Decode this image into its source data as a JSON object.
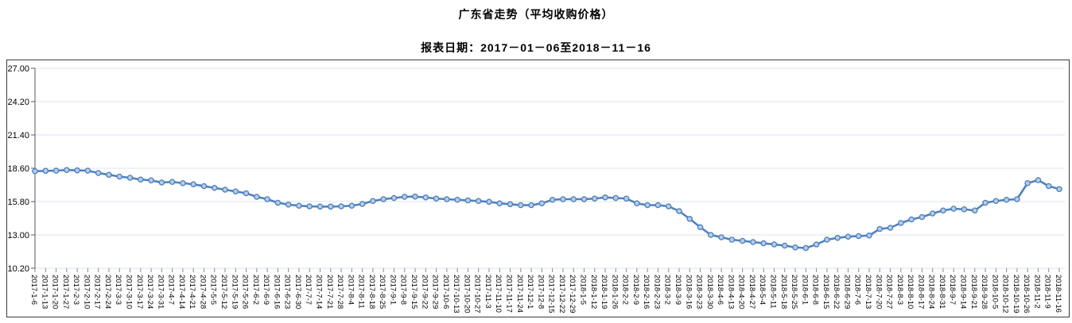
{
  "header": {
    "title": "广东省走势（平均收购价格）",
    "subtitle": "报表日期：2017－01－06至2018－11－16"
  },
  "chart_data": {
    "type": "line",
    "title": "广东省走势（平均收购价格）",
    "subtitle": "报表日期：2017－01－06至2018－11－16",
    "xlabel": "",
    "ylabel": "",
    "ylim": [
      10.2,
      27.0
    ],
    "yticks": [
      27.0,
      24.2,
      21.4,
      18.6,
      15.8,
      13.0,
      10.2
    ],
    "ytick_labels": [
      "27.00",
      "24.20",
      "21.40",
      "18.60",
      "15.80",
      "13.00",
      "10.20"
    ],
    "grid": true,
    "legend_position": "none",
    "line_color": "#4f81bd",
    "marker_fill": "#b7cde8",
    "grid_color": "#dce6f1",
    "axis_color": "#595959",
    "tick_color": "#8a8a8a",
    "x": [
      "2017-1-6",
      "2017-1-13",
      "2017-1-20",
      "2017-1-27",
      "2017-2-3",
      "2017-2-10",
      "2017-2-17",
      "2017-2-24",
      "2017-3-3",
      "2017-3-10",
      "2017-3-17",
      "2017-3-24",
      "2017-3-31",
      "2017-4-7",
      "2017-4-14",
      "2017-4-21",
      "2017-4-28",
      "2017-5-5",
      "2017-5-12",
      "2017-5-19",
      "2017-5-26",
      "2017-6-2",
      "2017-6-9",
      "2017-6-16",
      "2017-6-23",
      "2017-6-30",
      "2017-7-7",
      "2017-7-14",
      "2017-7-21",
      "2017-7-28",
      "2017-8-4",
      "2017-8-11",
      "2017-8-18",
      "2017-8-25",
      "2017-9-1",
      "2017-9-8",
      "2017-9-15",
      "2017-9-22",
      "2017-9-29",
      "2017-10-6",
      "2017-10-13",
      "2017-10-20",
      "2017-10-27",
      "2017-11-3",
      "2017-11-10",
      "2017-11-17",
      "2017-11-24",
      "2017-12-1",
      "2017-12-8",
      "2017-12-15",
      "2017-12-22",
      "2017-12-29",
      "2018-1-5",
      "2018-1-12",
      "2018-1-19",
      "2018-1-26",
      "2018-2-2",
      "2018-2-9",
      "2018-2-16",
      "2018-2-23",
      "2018-3-2",
      "2018-3-9",
      "2018-3-16",
      "2018-3-23",
      "2018-3-30",
      "2018-4-6",
      "2018-4-13",
      "2018-4-20",
      "2018-4-27",
      "2018-5-4",
      "2018-5-11",
      "2018-5-18",
      "2018-5-25",
      "2018-6-1",
      "2018-6-8",
      "2018-6-15",
      "2018-6-22",
      "2018-6-29",
      "2018-7-6",
      "2018-7-13",
      "2018-7-20",
      "2018-7-27",
      "2018-8-3",
      "2018-8-10",
      "2018-8-17",
      "2018-8-24",
      "2018-8-31",
      "2018-9-7",
      "2018-9-14",
      "2018-9-21",
      "2018-9-28",
      "2018-10-5",
      "2018-10-12",
      "2018-10-19",
      "2018-10-26",
      "2018-11-2",
      "2018-11-9",
      "2018-11-16"
    ],
    "values": [
      18.35,
      18.38,
      18.4,
      18.45,
      18.42,
      18.4,
      18.2,
      18.05,
      17.9,
      17.8,
      17.65,
      17.58,
      17.4,
      17.45,
      17.35,
      17.25,
      17.1,
      16.95,
      16.8,
      16.65,
      16.5,
      16.2,
      16.0,
      15.7,
      15.55,
      15.45,
      15.4,
      15.38,
      15.38,
      15.4,
      15.45,
      15.6,
      15.85,
      16.0,
      16.1,
      16.2,
      16.22,
      16.15,
      16.05,
      16.0,
      15.95,
      15.9,
      15.85,
      15.78,
      15.65,
      15.58,
      15.5,
      15.5,
      15.65,
      15.95,
      16.0,
      16.0,
      16.0,
      16.05,
      16.15,
      16.1,
      16.05,
      15.65,
      15.5,
      15.5,
      15.4,
      15.0,
      14.35,
      13.65,
      13.0,
      12.8,
      12.6,
      12.5,
      12.4,
      12.3,
      12.2,
      12.1,
      11.95,
      11.9,
      12.2,
      12.6,
      12.75,
      12.85,
      12.9,
      12.95,
      13.5,
      13.6,
      14.0,
      14.3,
      14.5,
      14.8,
      15.05,
      15.2,
      15.15,
      15.05,
      15.7,
      15.85,
      15.95,
      16.0,
      17.35,
      17.6,
      17.1,
      16.85
    ]
  }
}
